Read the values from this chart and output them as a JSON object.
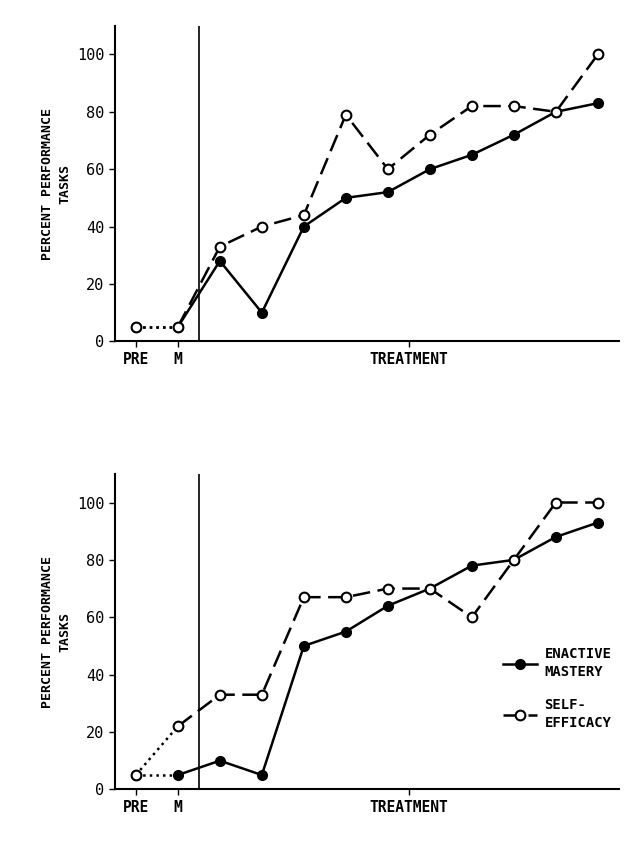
{
  "top": {
    "enactive_y": [
      5,
      5,
      28,
      10,
      40,
      50,
      52,
      60,
      65,
      72,
      80,
      83
    ],
    "efficacy_y": [
      5,
      5,
      33,
      40,
      44,
      79,
      60,
      72,
      82,
      82,
      80,
      100
    ]
  },
  "bottom": {
    "enactive_y": [
      5,
      5,
      10,
      5,
      50,
      55,
      64,
      70,
      78,
      80,
      88,
      93
    ],
    "efficacy_y": [
      5,
      22,
      33,
      33,
      67,
      67,
      70,
      70,
      60,
      80,
      100,
      100
    ]
  },
  "x_positions": [
    0,
    1,
    2,
    3,
    4,
    5,
    6,
    7,
    8,
    9,
    10,
    11
  ],
  "ytick_positions": [
    0,
    20,
    40,
    60,
    80,
    100
  ],
  "ytick_labels": [
    "0",
    "20",
    "40",
    "60",
    "80",
    "100"
  ],
  "ylabel": "PERCENT PERFORMANCE\nTASKS",
  "bg_color": "#ffffff",
  "legend_enactive": "ENACTIVE\nMASTERY",
  "legend_efficacy": "SELF-\nEFFICACY"
}
